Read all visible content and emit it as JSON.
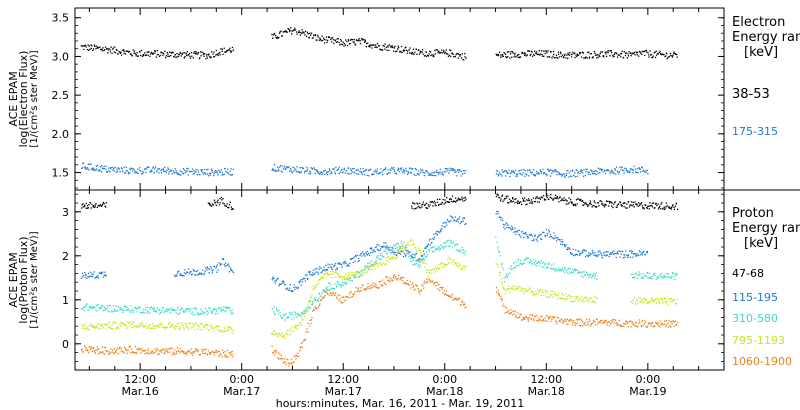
{
  "x_axis": {
    "label": "hours:minutes, Mar. 16, 2011 - Mar. 19, 2011",
    "ticks": [
      {
        "t": 12,
        "time": "12:00",
        "date": "Mar.16"
      },
      {
        "t": 24,
        "time": "0:00",
        "date": "Mar.17"
      },
      {
        "t": 36,
        "time": "12:00",
        "date": "Mar.17"
      },
      {
        "t": 48,
        "time": "0:00",
        "date": "Mar.18"
      },
      {
        "t": 60,
        "time": "12:00",
        "date": "Mar.18"
      },
      {
        "t": 72,
        "time": "0:00",
        "date": "Mar.19"
      }
    ],
    "range_hours_from_mar16_0000": [
      4.3,
      81.0
    ]
  },
  "colors": {
    "black": "#000000",
    "blue": "#1e78d2",
    "cyan": "#3cd8cc",
    "yellowgreen": "#c8e61e",
    "orange": "#e6821e"
  },
  "chart_data": [
    {
      "type": "scatter",
      "title": "",
      "ylabel_lines": [
        "ACE EPAM",
        "log(Electron Flux)",
        "[1/(cm²s ster MeV)]"
      ],
      "ylim": [
        1.3,
        3.6
      ],
      "yticks": [
        "1.5",
        "2.0",
        "2.5",
        "3.0",
        "3.5"
      ],
      "legend": {
        "title_lines": [
          "Electron",
          "Energy range",
          "[keV]"
        ],
        "placement": "right",
        "entries": [
          {
            "label": "38-53",
            "color": "#000000"
          },
          {
            "label": "175-315",
            "color": "#1e78d2"
          }
        ]
      },
      "series": [
        {
          "name": "38-53",
          "color": "#000000",
          "points": [
            [
              5,
              3.13
            ],
            [
              8,
              3.1
            ],
            [
              11,
              3.05
            ],
            [
              14,
              3.04
            ],
            [
              17,
              3.03
            ],
            [
              20,
              3.02
            ],
            [
              21,
              3.06
            ],
            [
              23,
              3.1
            ],
            [
              27.5,
              3.25
            ],
            [
              30,
              3.35
            ],
            [
              31,
              3.32
            ],
            [
              33,
              3.24
            ],
            [
              36,
              3.18
            ],
            [
              38,
              3.2
            ],
            [
              40,
              3.14
            ],
            [
              42,
              3.12
            ],
            [
              44,
              3.07
            ],
            [
              46,
              3.05
            ],
            [
              48.5,
              3.05
            ],
            [
              50.5,
              3.0
            ],
            [
              54,
              3.02
            ],
            [
              57,
              3.04
            ],
            [
              60,
              3.04
            ],
            [
              62,
              3.02
            ],
            [
              65,
              3.03
            ],
            [
              68,
              3.04
            ],
            [
              70,
              3.02
            ],
            [
              71,
              3.05
            ],
            [
              73,
              3.03
            ],
            [
              75.5,
              3.02
            ]
          ]
        },
        {
          "name": "175-315",
          "color": "#1e78d2",
          "points": [
            [
              5,
              1.59
            ],
            [
              8,
              1.55
            ],
            [
              11,
              1.53
            ],
            [
              14,
              1.54
            ],
            [
              17,
              1.52
            ],
            [
              20,
              1.51
            ],
            [
              23,
              1.52
            ],
            [
              27.5,
              1.57
            ],
            [
              30,
              1.55
            ],
            [
              33,
              1.52
            ],
            [
              36,
              1.54
            ],
            [
              39,
              1.51
            ],
            [
              42,
              1.53
            ],
            [
              44,
              1.52
            ],
            [
              46,
              1.5
            ],
            [
              48.5,
              1.52
            ],
            [
              50.5,
              1.49
            ],
            [
              54,
              1.5
            ],
            [
              57,
              1.5
            ],
            [
              60,
              1.51
            ],
            [
              62,
              1.49
            ],
            [
              64,
              1.5
            ],
            [
              66,
              1.52
            ],
            [
              68,
              1.53
            ],
            [
              70,
              1.55
            ],
            [
              72,
              1.53
            ],
            [
              75.5,
              1.52
            ]
          ]
        }
      ]
    },
    {
      "type": "scatter",
      "title": "",
      "ylabel_lines": [
        "ACE EPAM",
        "log(Proton Flux)",
        "[1/(cm²s ster MeV)]"
      ],
      "ylim": [
        -0.55,
        3.45
      ],
      "yticks": [
        "0",
        "1",
        "2",
        "3"
      ],
      "legend": {
        "title_lines": [
          "Proton",
          "Energy range",
          "[keV]"
        ],
        "placement": "right",
        "entries": [
          {
            "label": "47-68",
            "color": "#000000"
          },
          {
            "label": "115-195",
            "color": "#1e78d2"
          },
          {
            "label": "310-580",
            "color": "#3cd8cc"
          },
          {
            "label": "795-1193",
            "color": "#c8e61e"
          },
          {
            "label": "1060-1900",
            "color": "#e6821e"
          }
        ]
      },
      "series": [
        {
          "name": "47-68",
          "color": "#000000",
          "points": [
            [
              5,
              3.15
            ],
            [
              8,
              3.15
            ],
            [
              12,
              3.15
            ],
            [
              16,
              3.15
            ],
            [
              20,
              3.16
            ],
            [
              21.5,
              3.27
            ],
            [
              23,
              3.12
            ],
            [
              27.5,
              3.15
            ],
            [
              32,
              3.14
            ],
            [
              36,
              3.13
            ],
            [
              40,
              3.14
            ],
            [
              44,
              3.15
            ],
            [
              46,
              3.16
            ],
            [
              48.5,
              3.3
            ],
            [
              50.5,
              3.32
            ],
            [
              54,
              3.38
            ],
            [
              55,
              3.3
            ],
            [
              57,
              3.25
            ],
            [
              59,
              3.28
            ],
            [
              60,
              3.37
            ],
            [
              62,
              3.26
            ],
            [
              65,
              3.2
            ],
            [
              68,
              3.18
            ],
            [
              70.5,
              3.16
            ],
            [
              73,
              3.15
            ],
            [
              75.5,
              3.14
            ]
          ]
        },
        {
          "name": "115-195",
          "color": "#1e78d2",
          "points": [
            [
              5,
              1.55
            ],
            [
              8,
              1.6
            ],
            [
              12,
              1.58
            ],
            [
              16,
              1.62
            ],
            [
              19,
              1.65
            ],
            [
              21,
              1.72
            ],
            [
              21.8,
              1.9
            ],
            [
              23,
              1.6
            ],
            [
              27.5,
              1.5
            ],
            [
              29,
              1.35
            ],
            [
              30,
              1.25
            ],
            [
              32,
              1.6
            ],
            [
              34,
              1.75
            ],
            [
              36,
              1.8
            ],
            [
              38,
              2.0
            ],
            [
              40,
              2.2
            ],
            [
              41,
              2.25
            ],
            [
              42,
              2.1
            ],
            [
              44,
              2.05
            ],
            [
              45,
              1.95
            ],
            [
              46,
              2.3
            ],
            [
              48.5,
              2.85
            ],
            [
              50.5,
              2.8
            ],
            [
              54,
              3.05
            ],
            [
              55,
              2.7
            ],
            [
              57,
              2.5
            ],
            [
              59,
              2.4
            ],
            [
              60,
              2.55
            ],
            [
              61,
              2.45
            ],
            [
              63,
              2.1
            ],
            [
              66,
              2.05
            ],
            [
              69,
              2.05
            ],
            [
              72,
              2.06
            ],
            [
              75.5,
              2.05
            ]
          ]
        },
        {
          "name": "310-580",
          "color": "#3cd8cc",
          "points": [
            [
              5,
              0.85
            ],
            [
              8,
              0.82
            ],
            [
              11,
              0.8
            ],
            [
              14,
              0.78
            ],
            [
              17,
              0.76
            ],
            [
              20,
              0.75
            ],
            [
              22,
              0.8
            ],
            [
              23,
              0.7
            ],
            [
              27.5,
              0.8
            ],
            [
              29,
              0.62
            ],
            [
              31,
              0.7
            ],
            [
              32.5,
              1.0
            ],
            [
              34,
              1.3
            ],
            [
              36,
              1.4
            ],
            [
              37,
              1.5
            ],
            [
              39,
              1.8
            ],
            [
              41,
              2.1
            ],
            [
              42,
              2.2
            ],
            [
              43,
              2.3
            ],
            [
              44,
              1.9
            ],
            [
              45,
              1.8
            ],
            [
              46,
              2.1
            ],
            [
              48.5,
              2.3
            ],
            [
              50.5,
              2.1
            ],
            [
              54,
              2.4
            ],
            [
              55,
              1.5
            ],
            [
              56,
              1.8
            ],
            [
              57,
              1.9
            ],
            [
              59,
              1.85
            ],
            [
              61,
              1.75
            ],
            [
              63,
              1.65
            ],
            [
              66,
              1.55
            ],
            [
              70,
              1.58
            ],
            [
              73,
              1.55
            ],
            [
              75.5,
              1.55
            ]
          ]
        },
        {
          "name": "795-1193",
          "color": "#c8e61e",
          "points": [
            [
              5,
              0.4
            ],
            [
              8,
              0.42
            ],
            [
              11,
              0.45
            ],
            [
              14,
              0.43
            ],
            [
              17,
              0.42
            ],
            [
              20,
              0.4
            ],
            [
              22,
              0.35
            ],
            [
              23,
              0.3
            ],
            [
              27.5,
              0.3
            ],
            [
              29,
              0.2
            ],
            [
              31,
              0.5
            ],
            [
              32.5,
              1.3
            ],
            [
              34,
              1.6
            ],
            [
              36,
              1.55
            ],
            [
              38,
              1.6
            ],
            [
              40,
              1.8
            ],
            [
              42,
              2.0
            ],
            [
              44,
              2.35
            ],
            [
              45,
              2.1
            ],
            [
              46,
              1.6
            ],
            [
              48.5,
              1.9
            ],
            [
              50.5,
              1.7
            ],
            [
              54,
              1.9
            ],
            [
              55,
              1.2
            ],
            [
              56,
              1.3
            ],
            [
              58,
              1.2
            ],
            [
              60,
              1.15
            ],
            [
              63,
              1.05
            ],
            [
              66,
              1.0
            ],
            [
              70,
              1.0
            ],
            [
              73,
              0.98
            ],
            [
              75.5,
              0.97
            ]
          ]
        },
        {
          "name": "1060-1900",
          "color": "#e6821e",
          "points": [
            [
              5,
              -0.1
            ],
            [
              8,
              -0.15
            ],
            [
              11,
              -0.12
            ],
            [
              14,
              -0.15
            ],
            [
              17,
              -0.16
            ],
            [
              20,
              -0.18
            ],
            [
              22,
              -0.22
            ],
            [
              23,
              -0.2
            ],
            [
              27.5,
              -0.1
            ],
            [
              28.5,
              -0.3
            ],
            [
              29.5,
              -0.45
            ],
            [
              30.5,
              -0.3
            ],
            [
              31.5,
              0.2
            ],
            [
              32.5,
              0.8
            ],
            [
              34,
              1.2
            ],
            [
              36,
              1.0
            ],
            [
              38,
              1.3
            ],
            [
              40,
              1.35
            ],
            [
              42,
              1.55
            ],
            [
              44,
              1.35
            ],
            [
              45,
              1.2
            ],
            [
              46,
              1.5
            ],
            [
              48.5,
              1.1
            ],
            [
              50.5,
              0.9
            ],
            [
              54,
              1.3
            ],
            [
              55,
              0.8
            ],
            [
              56,
              0.75
            ],
            [
              57,
              0.6
            ],
            [
              59,
              0.6
            ],
            [
              61,
              0.55
            ],
            [
              64,
              0.5
            ],
            [
              67,
              0.5
            ],
            [
              70,
              0.48
            ],
            [
              73,
              0.47
            ],
            [
              75.5,
              0.47
            ]
          ]
        }
      ]
    }
  ]
}
